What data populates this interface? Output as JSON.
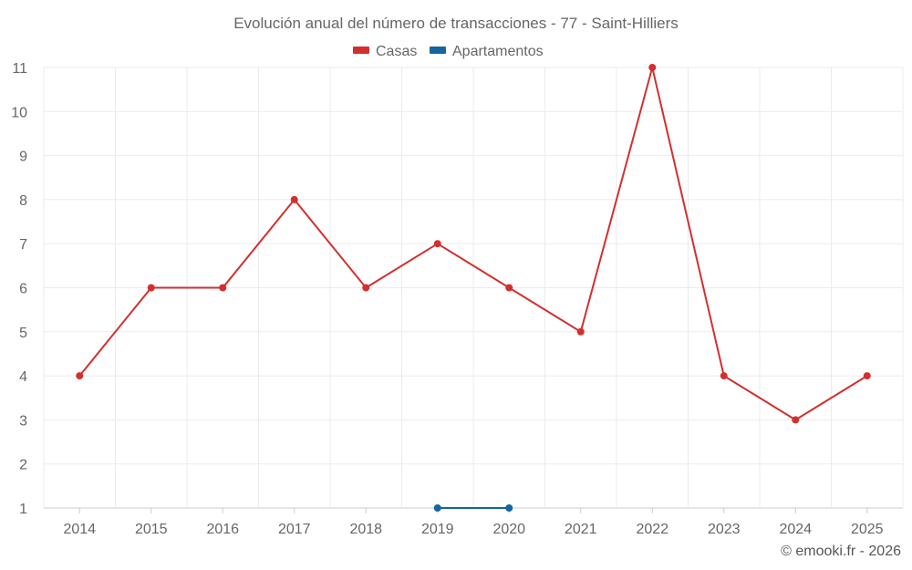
{
  "chart_data": {
    "type": "line",
    "title": "Evolución anual del número de transacciones - 77 - Saint-Hilliers",
    "categories": [
      "2014",
      "2015",
      "2016",
      "2017",
      "2018",
      "2019",
      "2020",
      "2021",
      "2022",
      "2023",
      "2024",
      "2025"
    ],
    "series": [
      {
        "name": "Casas",
        "color": "#d32f2f",
        "values": [
          4,
          6,
          6,
          8,
          6,
          7,
          6,
          5,
          11,
          4,
          3,
          4
        ]
      },
      {
        "name": "Apartamentos",
        "color": "#1565a0",
        "values": [
          null,
          null,
          null,
          null,
          null,
          1,
          1,
          null,
          null,
          null,
          null,
          null
        ]
      }
    ],
    "ylim": [
      1,
      11
    ],
    "yticks": [
      "1",
      "2",
      "3",
      "4",
      "5",
      "6",
      "7",
      "8",
      "9",
      "10",
      "11"
    ],
    "xlabel": "",
    "ylabel": "",
    "grid": true,
    "legend_position": "top-center"
  },
  "credit": "© emooki.fr - 2026"
}
